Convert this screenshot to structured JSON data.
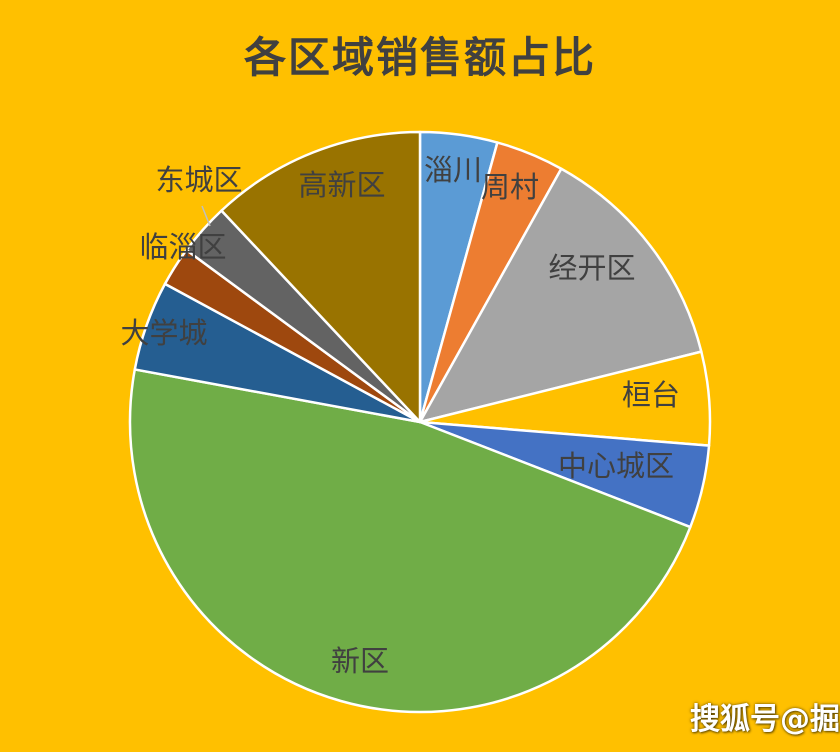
{
  "chart_data": {
    "type": "pie",
    "title": "各区域销售额占比",
    "start_angle_deg": 0,
    "direction": "clockwise",
    "slices": [
      {
        "label": "淄川",
        "value": 4.3,
        "color": "#5B9BD5"
      },
      {
        "label": "周村",
        "value": 3.8,
        "color": "#ED7D31"
      },
      {
        "label": "经开区",
        "value": 13.0,
        "color": "#A5A5A5"
      },
      {
        "label": "桓台",
        "value": 5.2,
        "color": "#FFC000"
      },
      {
        "label": "中心城区",
        "value": 4.6,
        "color": "#4472C4"
      },
      {
        "label": "新区",
        "value": 47.0,
        "color": "#70AD47"
      },
      {
        "label": "大学城",
        "value": 5.0,
        "color": "#255E91"
      },
      {
        "label": "临淄区",
        "value": 2.2,
        "color": "#9E480E"
      },
      {
        "label": "东城区",
        "value": 2.9,
        "color": "#636363"
      },
      {
        "label": "高新区",
        "value": 12.0,
        "color": "#997300"
      }
    ]
  },
  "watermark": "搜狐号@掘"
}
